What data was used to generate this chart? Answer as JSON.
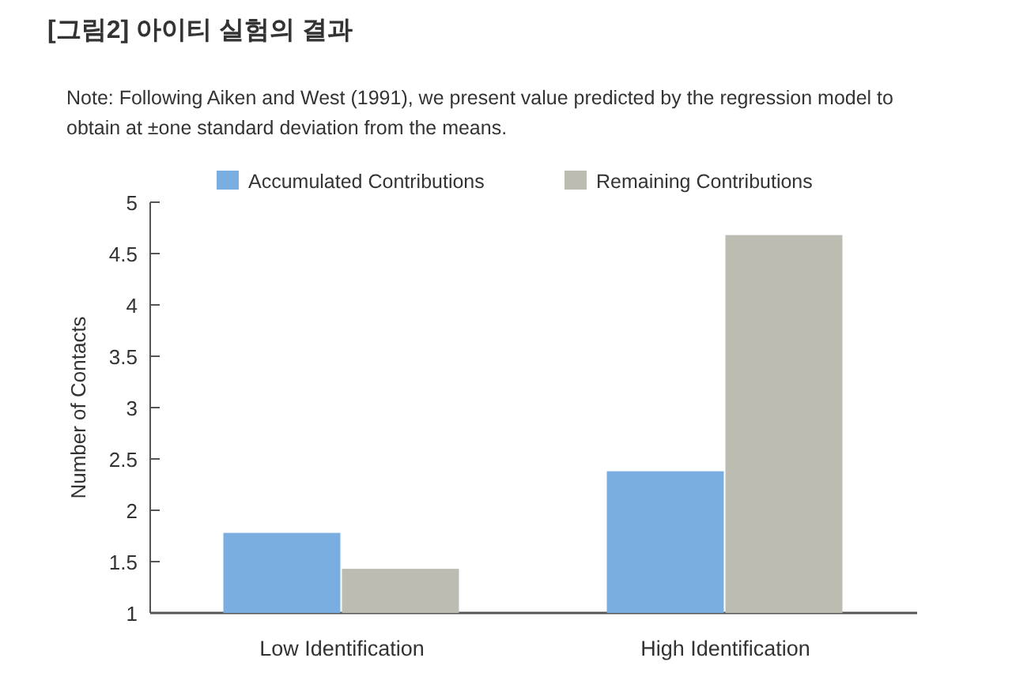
{
  "chart_data": {
    "type": "bar",
    "title": "[그림2] 아이티 실험의 결과",
    "annotations": [
      "Note: Following Aiken and West (1991), we present value predicted by the regression model to obtain at ±one standard deviation from the means."
    ],
    "ylabel": "Number of Contacts",
    "categories": [
      "Low Identification",
      "High Identification"
    ],
    "series": [
      {
        "name": "Accumulated Contributions",
        "color": "#7aaee0",
        "values": [
          1.78,
          2.38
        ]
      },
      {
        "name": "Remaining Contributions",
        "color": "#bdbcb2",
        "values": [
          1.43,
          4.68
        ]
      }
    ],
    "ylim": [
      1,
      5
    ],
    "yticks": [
      1,
      1.5,
      2,
      2.5,
      3,
      3.5,
      4,
      4.5,
      5
    ],
    "grid": false,
    "legend": "top"
  }
}
